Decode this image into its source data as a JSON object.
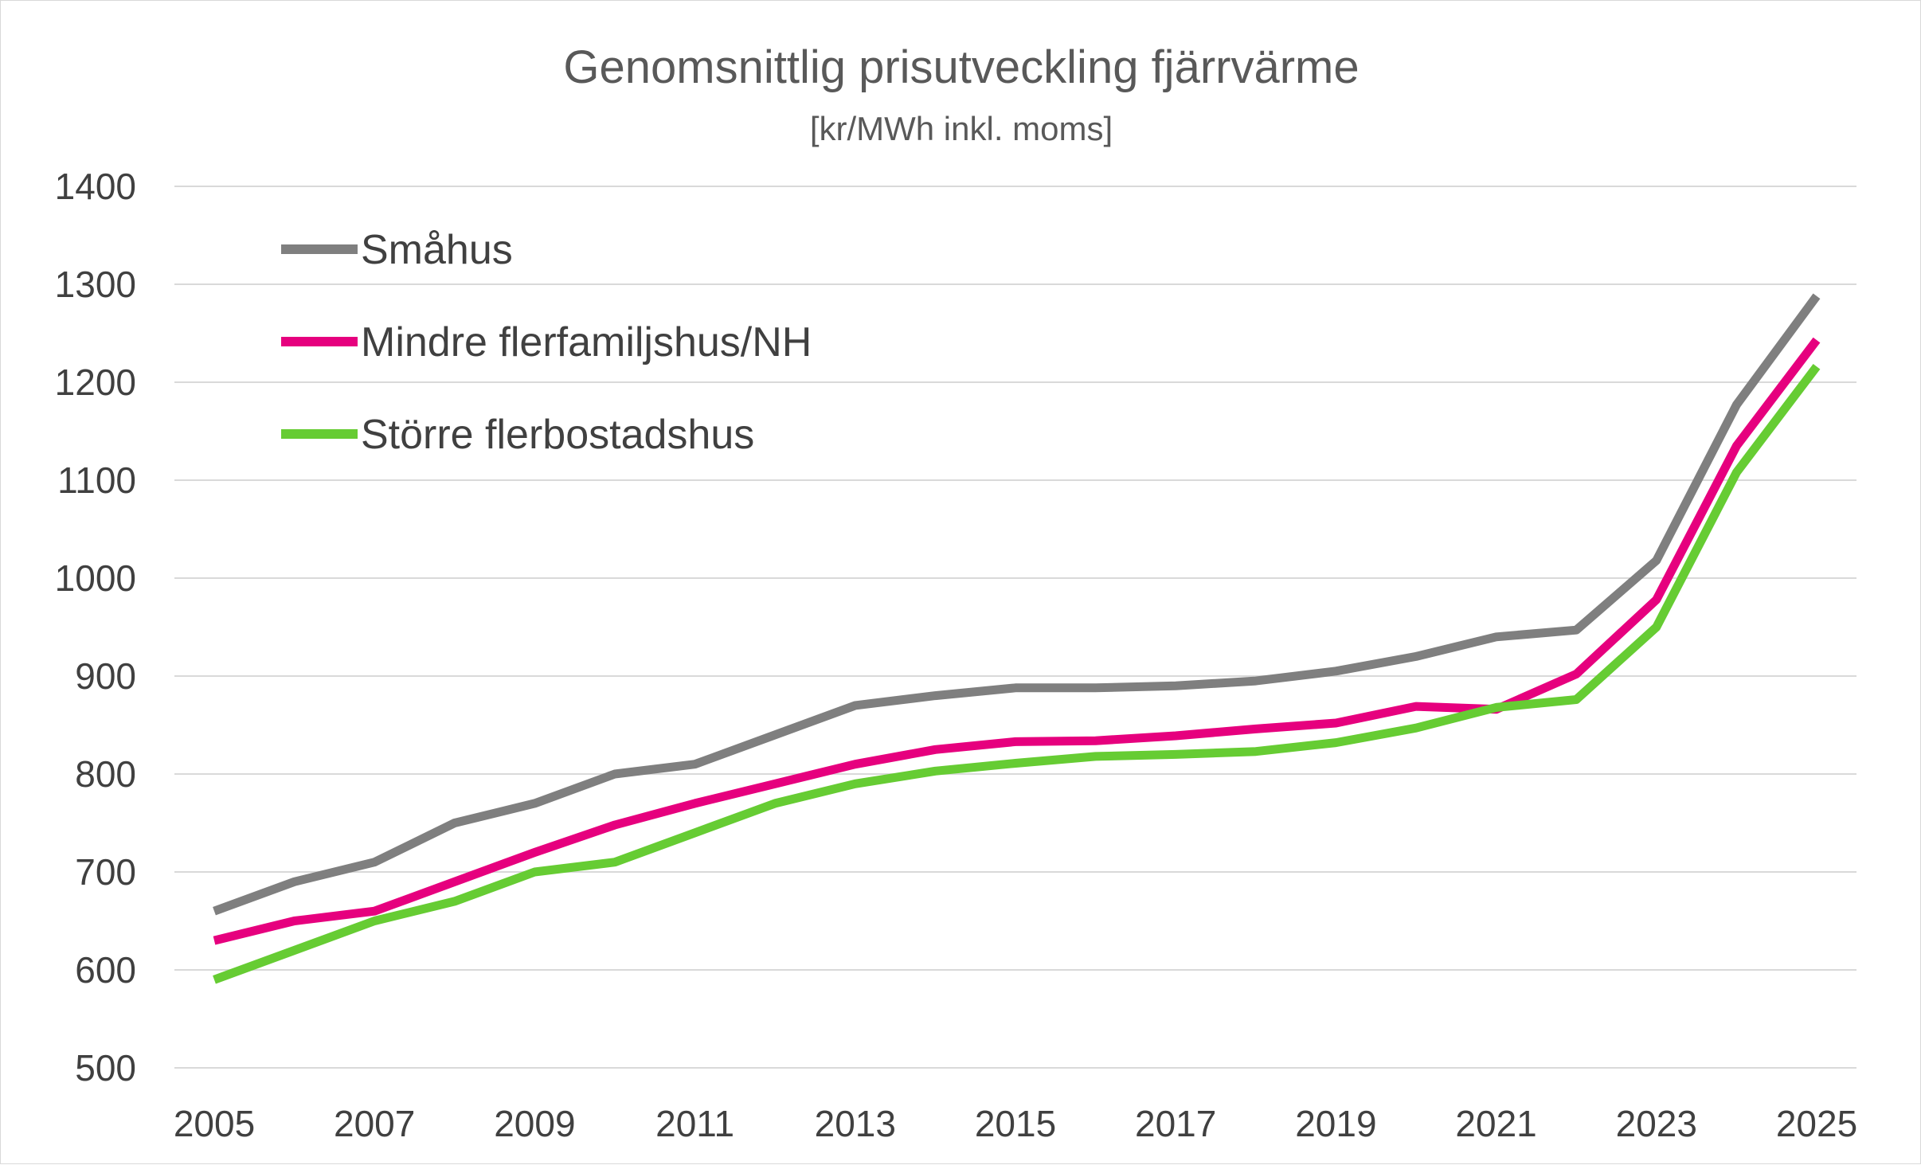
{
  "chart_data": {
    "type": "line",
    "title": "Genomsnittlig prisutveckling fjärrvärme",
    "subtitle": "[kr/MWh inkl. moms]",
    "xlabel": "",
    "ylabel": "",
    "x": [
      2005,
      2006,
      2007,
      2008,
      2009,
      2010,
      2011,
      2012,
      2013,
      2014,
      2015,
      2016,
      2017,
      2018,
      2019,
      2020,
      2021,
      2022,
      2023,
      2024,
      2025
    ],
    "x_tick_labels": [
      "2005",
      "2007",
      "2009",
      "2011",
      "2013",
      "2015",
      "2017",
      "2019",
      "2021",
      "2023",
      "2025"
    ],
    "y_tick_labels": [
      "500",
      "600",
      "700",
      "800",
      "900",
      "1000",
      "1100",
      "1200",
      "1300",
      "1400"
    ],
    "xlim": [
      2005,
      2025
    ],
    "ylim": [
      500,
      1400
    ],
    "grid": true,
    "legend_position": "top-left",
    "series": [
      {
        "name": "Småhus",
        "color": "#7f7f7f",
        "values": [
          660,
          690,
          710,
          750,
          770,
          800,
          810,
          840,
          870,
          880,
          888,
          888,
          890,
          895,
          905,
          920,
          940,
          947,
          1018,
          1177,
          1288
        ]
      },
      {
        "name": "Mindre flerfamiljshus/NH",
        "color": "#e6007e",
        "values": [
          630,
          650,
          660,
          690,
          720,
          748,
          770,
          790,
          810,
          825,
          833,
          834,
          839,
          846,
          852,
          869,
          866,
          902,
          978,
          1135,
          1243
        ]
      },
      {
        "name": "Större flerbostadshus",
        "color": "#66cc33",
        "values": [
          590,
          620,
          650,
          670,
          700,
          710,
          740,
          770,
          790,
          803,
          811,
          818,
          820,
          823,
          832,
          847,
          868,
          876,
          950,
          1108,
          1216
        ]
      }
    ]
  }
}
